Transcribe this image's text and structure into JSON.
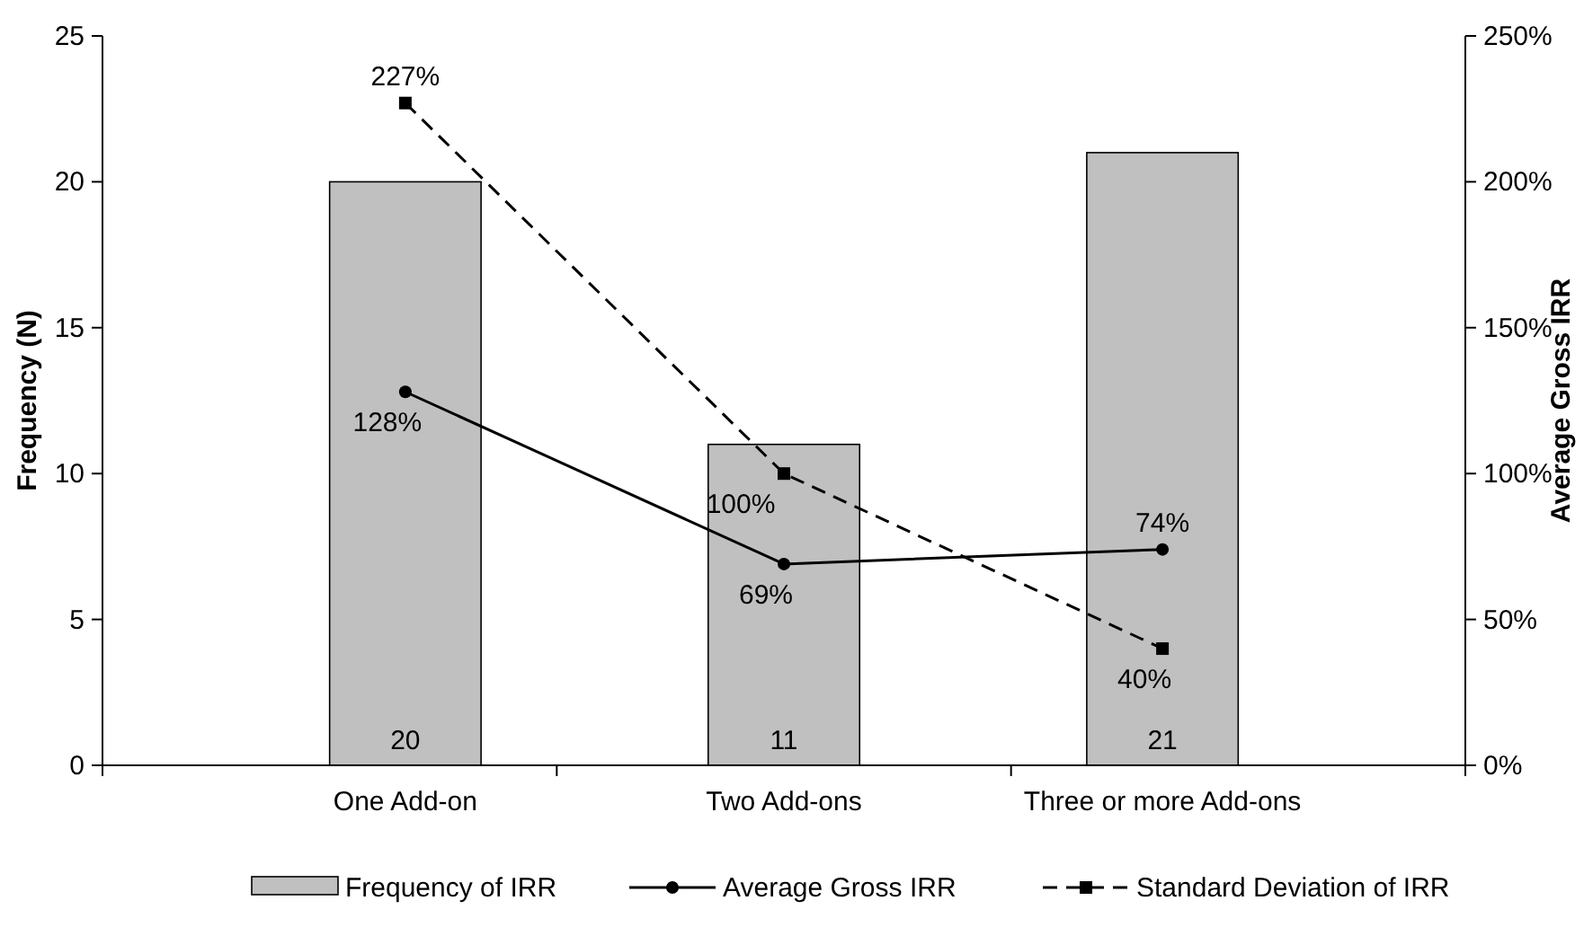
{
  "chart_data": {
    "type": "bar",
    "categories": [
      "One Add-on",
      "Two Add-ons",
      "Three or more Add-ons"
    ],
    "ylabel": "Frequency (N)",
    "y2label": "Average Gross IRR",
    "ylim": [
      0,
      25
    ],
    "yticks": [
      0,
      5,
      10,
      15,
      20,
      25
    ],
    "y2lim": [
      0,
      250
    ],
    "y2ticks": [
      {
        "value": 0,
        "label": "0%"
      },
      {
        "value": 50,
        "label": "50%"
      },
      {
        "value": 100,
        "label": "100%"
      },
      {
        "value": 150,
        "label": "150%"
      },
      {
        "value": 200,
        "label": "200%"
      },
      {
        "value": 250,
        "label": "250%"
      }
    ],
    "series": [
      {
        "name": "Frequency of IRR",
        "color": "#c0c0c0",
        "values": [
          20,
          11,
          21
        ],
        "value_labels": [
          "20",
          "11",
          "21"
        ]
      },
      {
        "name": "Average Gross IRR",
        "type": "line",
        "axis": "y2",
        "color": "#000000",
        "marker": "circle",
        "line_style": "solid",
        "values": [
          128,
          69,
          74
        ],
        "value_labels": [
          "128%",
          "69%",
          "74%"
        ]
      },
      {
        "name": "Standard Deviation of IRR",
        "type": "line",
        "axis": "y2",
        "color": "#000000",
        "marker": "square",
        "line_style": "dashed",
        "values": [
          227,
          100,
          40
        ],
        "value_labels": [
          "227%",
          "100%",
          "40%"
        ]
      }
    ],
    "grid": false,
    "legend": "bottom"
  }
}
